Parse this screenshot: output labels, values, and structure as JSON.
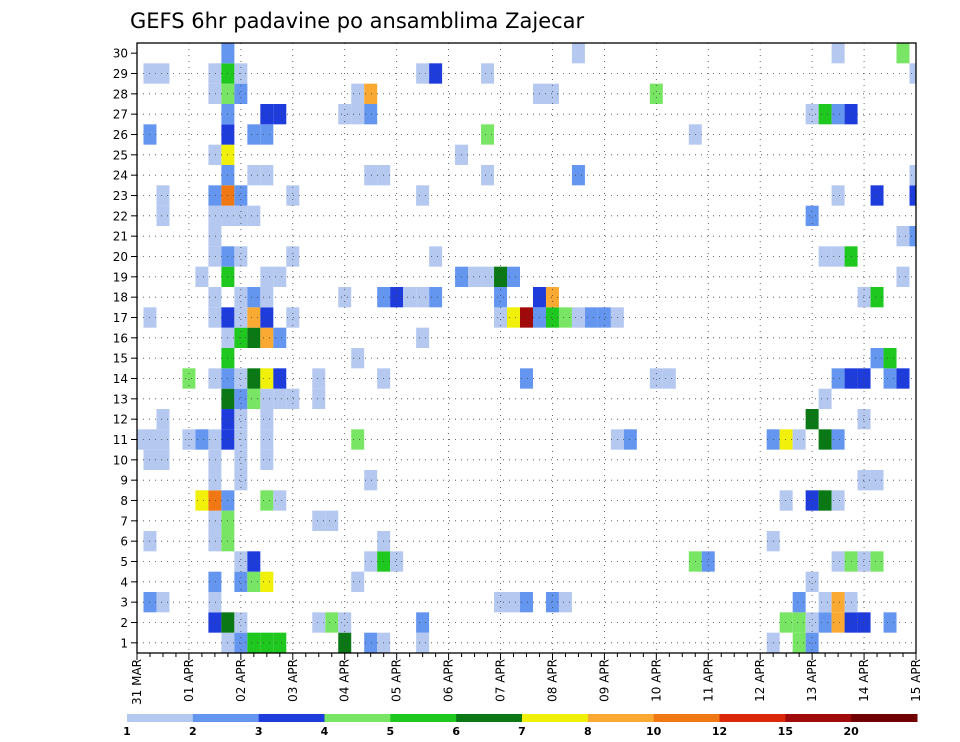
{
  "chart_data": {
    "type": "heatmap",
    "title": "GEFS 6hr padavine po ansamblima Zajecar",
    "xlabel": "",
    "ylabel": "",
    "x_tick_labels": [
      "31 MAR",
      "01 APR",
      "02 APR",
      "03 APR",
      "04 APR",
      "05 APR",
      "06 APR",
      "07 APR",
      "08 APR",
      "09 APR",
      "10 APR",
      "11 APR",
      "12 APR",
      "13 APR",
      "14 APR",
      "15 APR"
    ],
    "y_tick_labels": [
      "1",
      "2",
      "3",
      "4",
      "5",
      "6",
      "7",
      "8",
      "9",
      "10",
      "11",
      "12",
      "13",
      "14",
      "15",
      "16",
      "17",
      "18",
      "19",
      "20",
      "21",
      "22",
      "23",
      "24",
      "25",
      "26",
      "27",
      "28",
      "29",
      "30"
    ],
    "xlim": [
      0,
      60
    ],
    "ylim": [
      0.5,
      30.5
    ],
    "x_unit": "6hr steps from 31 MAR 00z",
    "grid": true,
    "colorbar_labels": [
      "1",
      "2",
      "3",
      "4",
      "5",
      "6",
      "7",
      "8",
      "10",
      "12",
      "15",
      "20"
    ],
    "colors": [
      "#b4c8f0",
      "#6496f0",
      "#1e3cdc",
      "#78e664",
      "#1ec81e",
      "#0a7814",
      "#f0f00a",
      "#faaa32",
      "#f07814",
      "#dc280a",
      "#a00a0a",
      "#700000"
    ],
    "cells": [
      [
        1,
        7,
        0
      ],
      [
        1,
        8,
        1
      ],
      [
        1,
        9,
        4
      ],
      [
        1,
        10,
        4
      ],
      [
        1,
        11,
        4
      ],
      [
        1,
        16,
        5
      ],
      [
        1,
        18,
        1
      ],
      [
        1,
        19,
        0
      ],
      [
        1,
        22,
        0
      ],
      [
        1,
        49,
        0
      ],
      [
        1,
        51,
        3
      ],
      [
        1,
        52,
        1
      ],
      [
        2,
        6,
        2
      ],
      [
        2,
        7,
        5
      ],
      [
        2,
        8,
        0
      ],
      [
        2,
        14,
        0
      ],
      [
        2,
        15,
        3
      ],
      [
        2,
        16,
        0
      ],
      [
        2,
        22,
        1
      ],
      [
        2,
        50,
        3
      ],
      [
        2,
        51,
        3
      ],
      [
        2,
        52,
        0
      ],
      [
        2,
        53,
        1
      ],
      [
        2,
        54,
        7
      ],
      [
        2,
        55,
        2
      ],
      [
        2,
        56,
        2
      ],
      [
        2,
        58,
        1
      ],
      [
        3,
        1,
        1
      ],
      [
        3,
        2,
        0
      ],
      [
        3,
        6,
        0
      ],
      [
        3,
        28,
        0
      ],
      [
        3,
        29,
        0
      ],
      [
        3,
        30,
        1
      ],
      [
        3,
        32,
        1
      ],
      [
        3,
        33,
        0
      ],
      [
        3,
        51,
        1
      ],
      [
        3,
        53,
        0
      ],
      [
        3,
        54,
        7
      ],
      [
        3,
        55,
        0
      ],
      [
        4,
        6,
        1
      ],
      [
        4,
        8,
        1
      ],
      [
        4,
        9,
        3
      ],
      [
        4,
        10,
        6
      ],
      [
        4,
        17,
        0
      ],
      [
        4,
        52,
        0
      ],
      [
        5,
        8,
        0
      ],
      [
        5,
        9,
        2
      ],
      [
        5,
        18,
        0
      ],
      [
        5,
        19,
        4
      ],
      [
        5,
        20,
        0
      ],
      [
        5,
        43,
        3
      ],
      [
        5,
        44,
        1
      ],
      [
        5,
        54,
        0
      ],
      [
        5,
        55,
        3
      ],
      [
        5,
        56,
        0
      ],
      [
        5,
        57,
        3
      ],
      [
        6,
        1,
        0
      ],
      [
        6,
        6,
        0
      ],
      [
        6,
        7,
        3
      ],
      [
        6,
        19,
        0
      ],
      [
        6,
        49,
        0
      ],
      [
        7,
        6,
        0
      ],
      [
        7,
        7,
        3
      ],
      [
        7,
        14,
        0
      ],
      [
        7,
        15,
        0
      ],
      [
        8,
        5,
        6
      ],
      [
        8,
        6,
        8
      ],
      [
        8,
        7,
        1
      ],
      [
        8,
        10,
        3
      ],
      [
        8,
        11,
        0
      ],
      [
        8,
        50,
        0
      ],
      [
        8,
        52,
        2
      ],
      [
        8,
        53,
        5
      ],
      [
        8,
        54,
        0
      ],
      [
        9,
        6,
        0
      ],
      [
        9,
        8,
        0
      ],
      [
        9,
        18,
        0
      ],
      [
        9,
        56,
        0
      ],
      [
        9,
        57,
        0
      ],
      [
        10,
        1,
        0
      ],
      [
        10,
        2,
        0
      ],
      [
        10,
        6,
        0
      ],
      [
        10,
        8,
        0
      ],
      [
        10,
        10,
        0
      ],
      [
        11,
        0,
        0
      ],
      [
        11,
        1,
        0
      ],
      [
        11,
        2,
        0
      ],
      [
        11,
        4,
        0
      ],
      [
        11,
        5,
        1
      ],
      [
        11,
        6,
        0
      ],
      [
        11,
        7,
        2
      ],
      [
        11,
        8,
        0
      ],
      [
        11,
        10,
        0
      ],
      [
        11,
        17,
        3
      ],
      [
        11,
        37,
        0
      ],
      [
        11,
        38,
        1
      ],
      [
        11,
        49,
        1
      ],
      [
        11,
        50,
        6
      ],
      [
        11,
        51,
        0
      ],
      [
        11,
        53,
        5
      ],
      [
        11,
        54,
        1
      ],
      [
        12,
        2,
        0
      ],
      [
        12,
        7,
        2
      ],
      [
        12,
        8,
        0
      ],
      [
        12,
        10,
        0
      ],
      [
        12,
        52,
        5
      ],
      [
        12,
        56,
        0
      ],
      [
        13,
        7,
        5
      ],
      [
        13,
        8,
        1
      ],
      [
        13,
        9,
        3
      ],
      [
        13,
        10,
        0
      ],
      [
        13,
        11,
        0
      ],
      [
        13,
        12,
        0
      ],
      [
        13,
        14,
        0
      ],
      [
        13,
        53,
        0
      ],
      [
        14,
        4,
        3
      ],
      [
        14,
        6,
        0
      ],
      [
        14,
        7,
        1
      ],
      [
        14,
        8,
        0
      ],
      [
        14,
        9,
        5
      ],
      [
        14,
        10,
        6
      ],
      [
        14,
        11,
        2
      ],
      [
        14,
        14,
        0
      ],
      [
        14,
        19,
        0
      ],
      [
        14,
        30,
        1
      ],
      [
        14,
        40,
        0
      ],
      [
        14,
        41,
        0
      ],
      [
        14,
        54,
        1
      ],
      [
        14,
        55,
        2
      ],
      [
        14,
        56,
        2
      ],
      [
        14,
        58,
        1
      ],
      [
        14,
        59,
        2
      ],
      [
        15,
        7,
        4
      ],
      [
        15,
        17,
        0
      ],
      [
        15,
        57,
        1
      ],
      [
        15,
        58,
        4
      ],
      [
        16,
        7,
        0
      ],
      [
        16,
        8,
        4
      ],
      [
        16,
        9,
        5
      ],
      [
        16,
        10,
        7
      ],
      [
        16,
        11,
        1
      ],
      [
        16,
        22,
        0
      ],
      [
        17,
        1,
        0
      ],
      [
        17,
        6,
        0
      ],
      [
        17,
        7,
        2
      ],
      [
        17,
        8,
        0
      ],
      [
        17,
        9,
        7
      ],
      [
        17,
        10,
        2
      ],
      [
        17,
        12,
        0
      ],
      [
        17,
        28,
        0
      ],
      [
        17,
        29,
        6
      ],
      [
        17,
        30,
        10
      ],
      [
        17,
        31,
        1
      ],
      [
        17,
        32,
        4
      ],
      [
        17,
        33,
        3
      ],
      [
        17,
        34,
        0
      ],
      [
        17,
        35,
        1
      ],
      [
        17,
        36,
        1
      ],
      [
        17,
        37,
        0
      ],
      [
        18,
        6,
        0
      ],
      [
        18,
        8,
        0
      ],
      [
        18,
        9,
        1
      ],
      [
        18,
        10,
        0
      ],
      [
        18,
        16,
        0
      ],
      [
        18,
        19,
        1
      ],
      [
        18,
        20,
        2
      ],
      [
        18,
        21,
        0
      ],
      [
        18,
        22,
        0
      ],
      [
        18,
        23,
        1
      ],
      [
        18,
        28,
        1
      ],
      [
        18,
        31,
        2
      ],
      [
        18,
        32,
        7
      ],
      [
        18,
        56,
        0
      ],
      [
        18,
        57,
        4
      ],
      [
        19,
        5,
        0
      ],
      [
        19,
        7,
        4
      ],
      [
        19,
        10,
        0
      ],
      [
        19,
        11,
        0
      ],
      [
        19,
        25,
        1
      ],
      [
        19,
        26,
        0
      ],
      [
        19,
        27,
        0
      ],
      [
        19,
        28,
        5
      ],
      [
        19,
        29,
        1
      ],
      [
        19,
        59,
        0
      ],
      [
        20,
        6,
        0
      ],
      [
        20,
        7,
        1
      ],
      [
        20,
        8,
        0
      ],
      [
        20,
        12,
        0
      ],
      [
        20,
        23,
        0
      ],
      [
        20,
        53,
        0
      ],
      [
        20,
        54,
        0
      ],
      [
        20,
        55,
        4
      ],
      [
        21,
        6,
        0
      ],
      [
        21,
        59,
        0
      ],
      [
        21,
        60,
        1
      ],
      [
        22,
        2,
        0
      ],
      [
        22,
        6,
        0
      ],
      [
        22,
        7,
        0
      ],
      [
        22,
        8,
        0
      ],
      [
        22,
        9,
        0
      ],
      [
        22,
        52,
        1
      ],
      [
        23,
        2,
        0
      ],
      [
        23,
        6,
        1
      ],
      [
        23,
        7,
        8
      ],
      [
        23,
        8,
        1
      ],
      [
        23,
        12,
        0
      ],
      [
        23,
        22,
        0
      ],
      [
        23,
        54,
        0
      ],
      [
        23,
        57,
        2
      ],
      [
        23,
        60,
        2
      ],
      [
        24,
        7,
        1
      ],
      [
        24,
        9,
        0
      ],
      [
        24,
        10,
        0
      ],
      [
        24,
        18,
        0
      ],
      [
        24,
        19,
        0
      ],
      [
        24,
        27,
        0
      ],
      [
        24,
        34,
        1
      ],
      [
        24,
        60,
        0
      ],
      [
        25,
        6,
        0
      ],
      [
        25,
        7,
        6
      ],
      [
        25,
        25,
        0
      ],
      [
        26,
        1,
        1
      ],
      [
        26,
        7,
        2
      ],
      [
        26,
        9,
        1
      ],
      [
        26,
        10,
        1
      ],
      [
        26,
        27,
        3
      ],
      [
        26,
        43,
        0
      ],
      [
        27,
        7,
        1
      ],
      [
        27,
        10,
        2
      ],
      [
        27,
        11,
        2
      ],
      [
        27,
        16,
        0
      ],
      [
        27,
        17,
        0
      ],
      [
        27,
        18,
        1
      ],
      [
        27,
        52,
        0
      ],
      [
        27,
        53,
        4
      ],
      [
        27,
        54,
        1
      ],
      [
        27,
        55,
        2
      ],
      [
        28,
        6,
        0
      ],
      [
        28,
        7,
        3
      ],
      [
        28,
        8,
        1
      ],
      [
        28,
        17,
        0
      ],
      [
        28,
        18,
        7
      ],
      [
        28,
        31,
        0
      ],
      [
        28,
        32,
        0
      ],
      [
        28,
        40,
        3
      ],
      [
        29,
        1,
        0
      ],
      [
        29,
        2,
        0
      ],
      [
        29,
        6,
        0
      ],
      [
        29,
        7,
        4
      ],
      [
        29,
        8,
        0
      ],
      [
        29,
        22,
        0
      ],
      [
        29,
        23,
        2
      ],
      [
        29,
        27,
        0
      ],
      [
        29,
        60,
        0
      ],
      [
        30,
        7,
        1
      ],
      [
        30,
        34,
        0
      ],
      [
        30,
        54,
        0
      ],
      [
        30,
        59,
        3
      ]
    ]
  }
}
